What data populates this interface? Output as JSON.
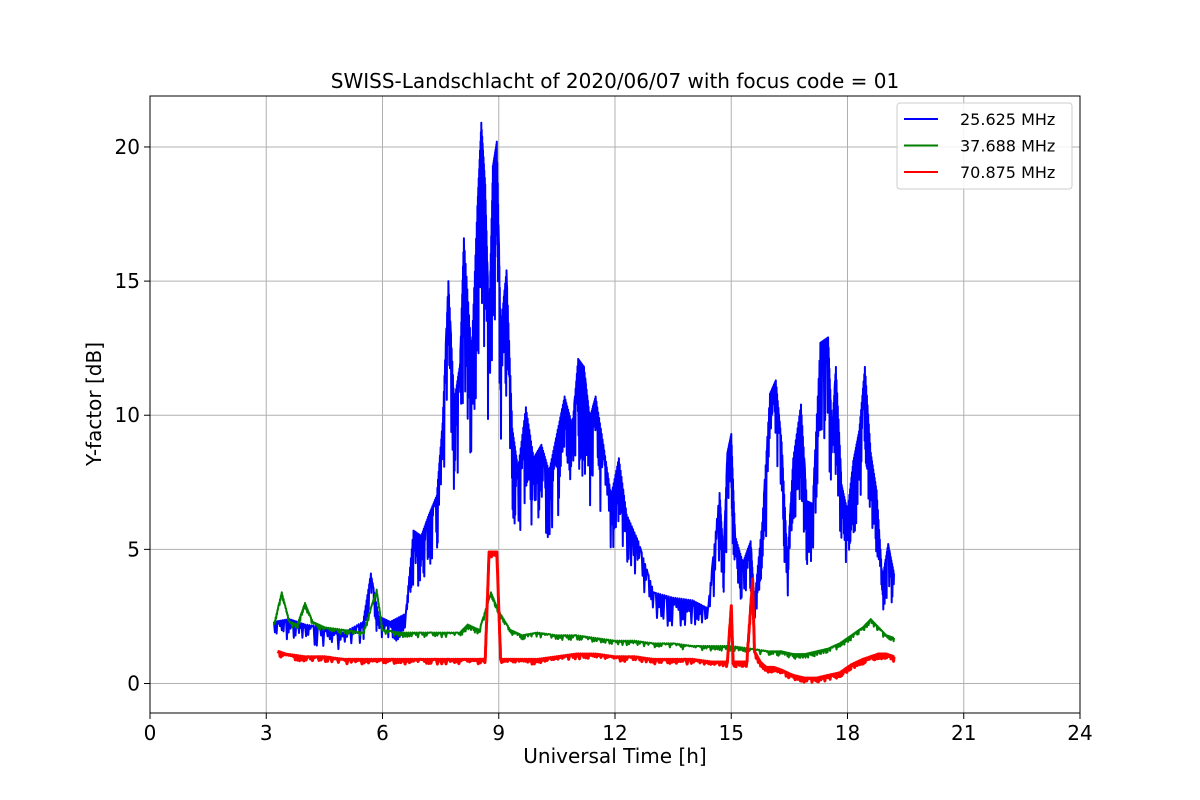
{
  "chart_data": {
    "type": "line",
    "title": "SWISS-Landschlacht of 2020/06/07 with focus code = 01",
    "xlabel": "Universal Time [h]",
    "ylabel": "Y-factor [dB]",
    "xlim": [
      0,
      24
    ],
    "ylim": [
      -1.1,
      21.9
    ],
    "xticks": [
      0,
      3,
      6,
      9,
      12,
      15,
      18,
      21,
      24
    ],
    "yticks": [
      0,
      5,
      10,
      15,
      20
    ],
    "grid": true,
    "legend_position": "top-right",
    "series": [
      {
        "name": "25.625 MHz",
        "color": "#0000ff",
        "x": [
          3.2,
          3.6,
          4.0,
          4.5,
          5.0,
          5.5,
          5.7,
          5.9,
          6.2,
          6.6,
          6.8,
          7.0,
          7.2,
          7.4,
          7.55,
          7.7,
          7.85,
          8.0,
          8.1,
          8.3,
          8.45,
          8.55,
          8.65,
          8.75,
          8.85,
          8.95,
          9.05,
          9.2,
          9.35,
          9.5,
          9.7,
          9.9,
          10.1,
          10.3,
          10.5,
          10.7,
          10.9,
          11.05,
          11.2,
          11.35,
          11.5,
          11.7,
          11.9,
          12.1,
          12.3,
          12.6,
          13.0,
          13.5,
          14.0,
          14.4,
          14.7,
          14.8,
          14.9,
          15.0,
          15.1,
          15.3,
          15.5,
          15.6,
          15.8,
          16.0,
          16.15,
          16.3,
          16.45,
          16.6,
          16.8,
          16.95,
          17.1,
          17.3,
          17.5,
          17.6,
          17.7,
          17.85,
          18.0,
          18.15,
          18.3,
          18.45,
          18.6,
          18.75,
          18.9,
          19.05,
          19.2
        ],
        "values": [
          2.3,
          2.4,
          2.2,
          2.1,
          1.9,
          2.3,
          4.1,
          2.5,
          2.3,
          2.6,
          5.7,
          5.5,
          6.3,
          7.0,
          9.7,
          15.0,
          10.5,
          11.9,
          16.6,
          12.3,
          17.8,
          20.9,
          18.6,
          13.4,
          19.3,
          20.2,
          13.2,
          15.4,
          9.5,
          8.0,
          10.3,
          8.4,
          8.9,
          7.9,
          9.3,
          10.7,
          9.6,
          12.1,
          11.8,
          9.9,
          10.7,
          8.9,
          7.0,
          8.4,
          6.3,
          5.3,
          3.4,
          3.2,
          3.1,
          2.8,
          7.1,
          4.7,
          8.6,
          9.3,
          5.5,
          4.5,
          5.3,
          3.1,
          6.0,
          10.8,
          11.3,
          9.0,
          4.6,
          8.4,
          10.4,
          6.8,
          6.7,
          12.7,
          12.9,
          9.4,
          11.8,
          7.4,
          6.4,
          8.3,
          9.4,
          11.8,
          8.6,
          7.2,
          3.9,
          5.2,
          4.1
        ]
      },
      {
        "name": "37.688 MHz",
        "color": "#008000",
        "x": [
          3.2,
          3.4,
          3.6,
          3.8,
          4.0,
          4.2,
          4.5,
          5.0,
          5.5,
          5.85,
          6.0,
          6.5,
          7.0,
          7.5,
          8.0,
          8.2,
          8.5,
          8.8,
          9.0,
          9.3,
          9.6,
          10.0,
          10.5,
          11.0,
          11.5,
          12.0,
          12.5,
          13.0,
          13.5,
          14.0,
          14.5,
          15.0,
          15.5,
          16.0,
          16.3,
          16.6,
          16.9,
          17.2,
          17.5,
          17.8,
          18.1,
          18.4,
          18.6,
          18.8,
          19.0,
          19.2
        ],
        "values": [
          2.2,
          3.4,
          2.3,
          2.2,
          3.0,
          2.3,
          2.1,
          2.0,
          1.9,
          3.5,
          2.0,
          1.9,
          1.9,
          1.9,
          1.9,
          2.2,
          2.0,
          3.4,
          2.7,
          2.0,
          1.8,
          1.9,
          1.8,
          1.8,
          1.7,
          1.6,
          1.6,
          1.5,
          1.5,
          1.4,
          1.4,
          1.4,
          1.3,
          1.2,
          1.2,
          1.1,
          1.1,
          1.2,
          1.3,
          1.5,
          1.8,
          2.1,
          2.4,
          2.1,
          1.8,
          1.7
        ]
      },
      {
        "name": "70.875 MHz",
        "color": "#ff0000",
        "x": [
          3.3,
          3.5,
          4.0,
          4.5,
          5.0,
          5.5,
          6.0,
          6.5,
          7.0,
          7.5,
          8.0,
          8.5,
          8.65,
          8.75,
          8.85,
          8.95,
          9.05,
          9.5,
          10.0,
          10.5,
          11.0,
          11.5,
          12.0,
          12.5,
          13.0,
          13.5,
          14.0,
          14.5,
          14.9,
          15.0,
          15.05,
          15.2,
          15.4,
          15.55,
          15.6,
          15.75,
          15.9,
          16.1,
          16.3,
          16.6,
          16.9,
          17.2,
          17.5,
          17.8,
          18.1,
          18.4,
          18.6,
          18.8,
          19.0,
          19.2
        ],
        "values": [
          1.2,
          1.1,
          1.0,
          1.0,
          0.9,
          0.9,
          0.9,
          0.9,
          0.9,
          0.9,
          0.9,
          0.9,
          0.9,
          4.9,
          4.9,
          4.9,
          0.9,
          0.9,
          0.9,
          1.0,
          1.1,
          1.1,
          1.0,
          1.0,
          0.9,
          0.9,
          0.9,
          0.8,
          0.8,
          2.9,
          0.8,
          0.8,
          0.8,
          3.9,
          1.2,
          0.8,
          0.6,
          0.6,
          0.5,
          0.3,
          0.2,
          0.2,
          0.3,
          0.4,
          0.7,
          0.9,
          1.0,
          1.1,
          1.1,
          1.0
        ]
      }
    ]
  }
}
